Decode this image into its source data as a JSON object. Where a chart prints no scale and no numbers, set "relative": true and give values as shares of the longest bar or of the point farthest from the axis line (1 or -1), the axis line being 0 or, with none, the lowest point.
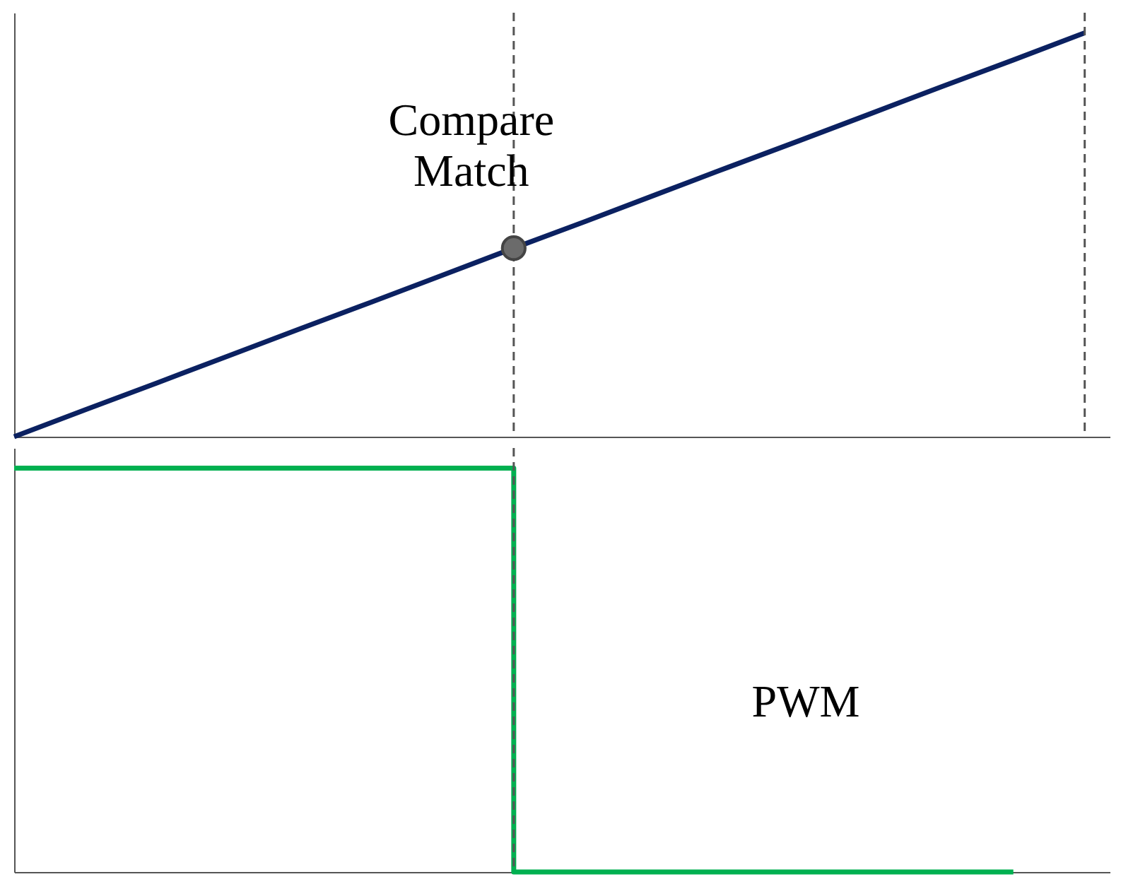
{
  "chart_data": [
    {
      "type": "line",
      "relative": true,
      "tick_labels": false,
      "categories": [
        null,
        null,
        null,
        null,
        null,
        null,
        null,
        null,
        null,
        null,
        null,
        null,
        null,
        null,
        null,
        null
      ],
      "series": [
        {
          "color": "#0b2161",
          "values": [
            0,
            0.067,
            0.133,
            0.2,
            0.267,
            0.333,
            0.4,
            0.467,
            0.533,
            0.6,
            0.667,
            0.733,
            0.8,
            0.867,
            0.933,
            1
          ]
        }
      ],
      "annotations": [
        "Compare\nMatch"
      ]
    },
    {
      "type": "step",
      "relative": true,
      "tick_labels": false,
      "categories": [
        null,
        null,
        null,
        null,
        null,
        null,
        null,
        null,
        null,
        null,
        null,
        null,
        null,
        null,
        null,
        null
      ],
      "series": [
        {
          "color": "#00b050",
          "values": [
            1,
            1,
            1,
            1,
            1,
            1,
            1,
            0,
            0,
            0,
            0,
            0,
            0,
            0,
            0,
            null
          ]
        }
      ],
      "annotations": [
        "PWM"
      ]
    }
  ]
}
